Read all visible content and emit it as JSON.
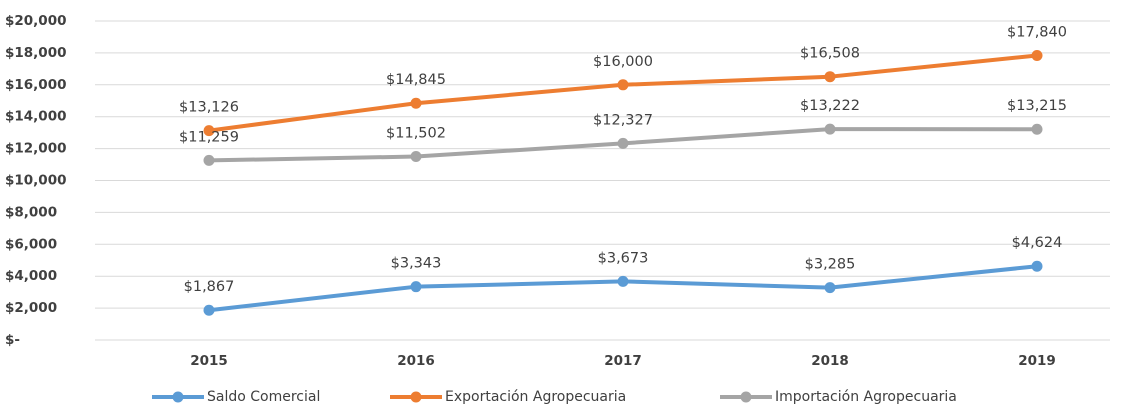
{
  "chart_data": {
    "type": "line",
    "categories": [
      "2015",
      "2016",
      "2017",
      "2018",
      "2019"
    ],
    "series": [
      {
        "name": "Saldo Comercial",
        "color": "#5b9bd5",
        "values": [
          1867,
          3343,
          3673,
          3285,
          4624
        ],
        "value_labels": [
          "$1,867",
          "$3,343",
          "$3,673",
          "$3,285",
          "$4,624"
        ]
      },
      {
        "name": "Exportación Agropecuaria",
        "color": "#ed7d31",
        "values": [
          13126,
          14845,
          16000,
          16508,
          17840
        ],
        "value_labels": [
          "$13,126",
          "$14,845",
          "$16,000",
          "$16,508",
          "$17,840"
        ]
      },
      {
        "name": "Importación Agropecuaria",
        "color": "#a5a5a5",
        "values": [
          11259,
          11502,
          12327,
          13222,
          13215
        ],
        "value_labels": [
          "$11,259",
          "$11,502",
          "$12,327",
          "$13,222",
          "$13,215"
        ]
      }
    ],
    "ylim": [
      0,
      20000
    ],
    "yticks": [
      {
        "value": 0,
        "label": "$-"
      },
      {
        "value": 2000,
        "label": "$2,000"
      },
      {
        "value": 4000,
        "label": "$4,000"
      },
      {
        "value": 6000,
        "label": "$6,000"
      },
      {
        "value": 8000,
        "label": "$8,000"
      },
      {
        "value": 10000,
        "label": "$10,000"
      },
      {
        "value": 12000,
        "label": "$12,000"
      },
      {
        "value": 14000,
        "label": "$14,000"
      },
      {
        "value": 16000,
        "label": "$16,000"
      },
      {
        "value": 18000,
        "label": "$18,000"
      },
      {
        "value": 20000,
        "label": "$20,000"
      }
    ],
    "grid": true,
    "legend": "bottom"
  }
}
